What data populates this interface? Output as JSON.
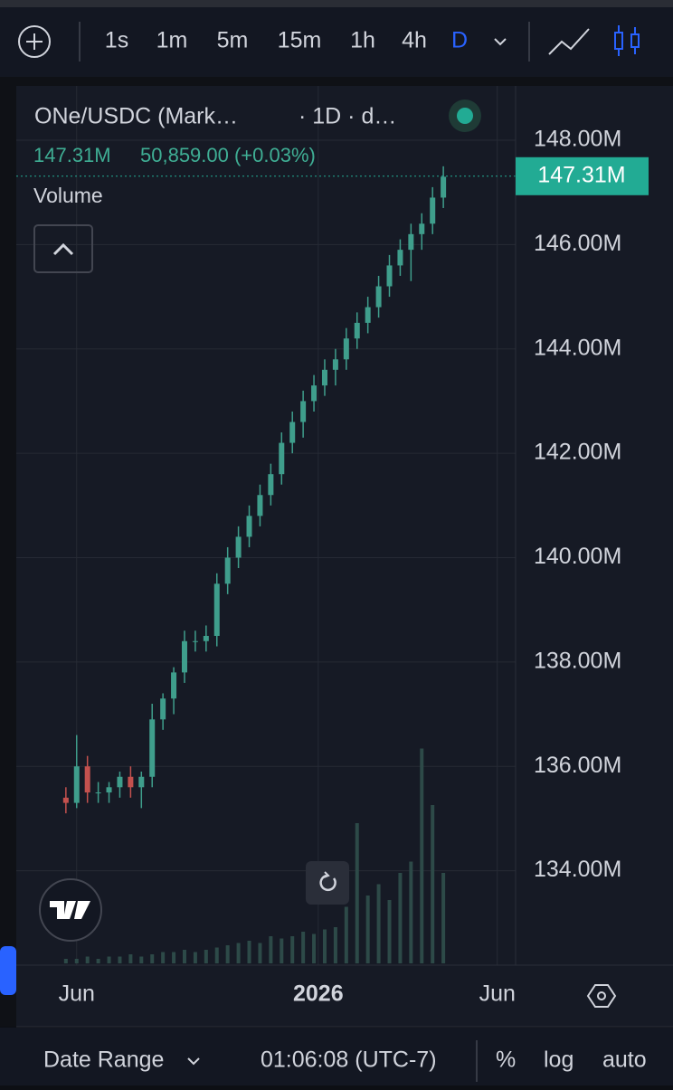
{
  "toolbar": {
    "intervals": [
      "1s",
      "1m",
      "5m",
      "15m",
      "1h",
      "4h",
      "D"
    ],
    "active": 6
  },
  "legend": {
    "symbol": "ONe/USDC (Mark…",
    "meta": "· 1D · d…",
    "change": "50,859.00 (+0.03%)",
    "volume": "Volume"
  },
  "footer": {
    "range": "Date Range",
    "time": "01:06:08 (UTC-7)",
    "percent": "%",
    "log": "log",
    "auto": "auto"
  },
  "chart_data": {
    "type": "candlestick",
    "categories": [
      null,
      null,
      null,
      null,
      null,
      null,
      null,
      null,
      null,
      null,
      null,
      null,
      null,
      null,
      null,
      null,
      null,
      null,
      null,
      null,
      null,
      null,
      null,
      null,
      null,
      null,
      null,
      null,
      null,
      null,
      null,
      null,
      null,
      null,
      null,
      null
    ],
    "open": [
      135.4,
      135.3,
      136.0,
      135.5,
      135.5,
      135.6,
      135.8,
      135.6,
      135.8,
      136.9,
      137.3,
      137.8,
      138.4,
      138.4,
      138.5,
      139.5,
      140.0,
      140.4,
      140.8,
      141.2,
      141.6,
      142.2,
      142.6,
      143.0,
      143.3,
      143.6,
      143.8,
      144.2,
      144.5,
      144.8,
      145.2,
      145.6,
      145.9,
      146.2,
      146.4,
      146.9
    ],
    "high": [
      135.6,
      136.6,
      136.2,
      135.7,
      135.7,
      135.9,
      136.0,
      135.9,
      137.2,
      137.4,
      137.9,
      138.6,
      138.6,
      138.7,
      139.7,
      140.2,
      140.6,
      141.0,
      141.4,
      141.8,
      142.4,
      142.8,
      143.2,
      143.5,
      143.8,
      144.0,
      144.4,
      144.7,
      145.0,
      145.4,
      145.8,
      146.1,
      146.4,
      146.6,
      147.1,
      147.5
    ],
    "low": [
      135.1,
      135.2,
      135.3,
      135.3,
      135.3,
      135.4,
      135.4,
      135.2,
      135.6,
      136.7,
      137.0,
      137.6,
      138.2,
      138.2,
      138.3,
      139.3,
      139.8,
      140.2,
      140.6,
      141.0,
      141.4,
      142.0,
      142.3,
      142.8,
      143.1,
      143.3,
      143.6,
      144.0,
      144.3,
      144.6,
      145.0,
      145.4,
      145.3,
      145.9,
      146.2,
      146.7
    ],
    "close": [
      135.3,
      136.0,
      135.5,
      135.5,
      135.6,
      135.8,
      135.6,
      135.8,
      136.9,
      137.3,
      137.8,
      138.4,
      138.4,
      138.5,
      139.5,
      140.0,
      140.4,
      140.8,
      141.2,
      141.6,
      142.2,
      142.6,
      143.0,
      143.3,
      143.6,
      143.8,
      144.2,
      144.5,
      144.8,
      145.2,
      145.6,
      145.9,
      146.2,
      146.4,
      146.9,
      147.3
    ],
    "volume": [
      2,
      2,
      3,
      2,
      3,
      3,
      4,
      3,
      4,
      5,
      5,
      6,
      5,
      6,
      7,
      8,
      9,
      10,
      9,
      12,
      11,
      12,
      14,
      13,
      15,
      16,
      25,
      62,
      30,
      35,
      28,
      40,
      45,
      95,
      70,
      40
    ],
    "vlim": [
      0,
      100
    ],
    "up_color": "#3f9e8c",
    "down_color": "#c4514e",
    "volume_color": "#2d4a48",
    "ylim": [
      132.19,
      149.04
    ],
    "yticks": [
      {
        "value": 134,
        "label": "134.00M"
      },
      {
        "value": 136,
        "label": "136.00M"
      },
      {
        "value": 138,
        "label": "138.00M"
      },
      {
        "value": 140,
        "label": "140.00M"
      },
      {
        "value": 142,
        "label": "142.00M"
      },
      {
        "value": 144,
        "label": "144.00M"
      },
      {
        "value": 146,
        "label": "146.00M"
      },
      {
        "value": 148,
        "label": "148.00M"
      }
    ],
    "xlim": [
      -4.6,
      41.7
    ],
    "xticks": [
      {
        "value": 1,
        "label": "Jun"
      },
      {
        "value": 23.4,
        "label": "2026"
      },
      {
        "value": 40,
        "label": "Jun"
      }
    ],
    "last_price": {
      "value": 147.31,
      "label": "147.31M"
    },
    "grid": true
  }
}
